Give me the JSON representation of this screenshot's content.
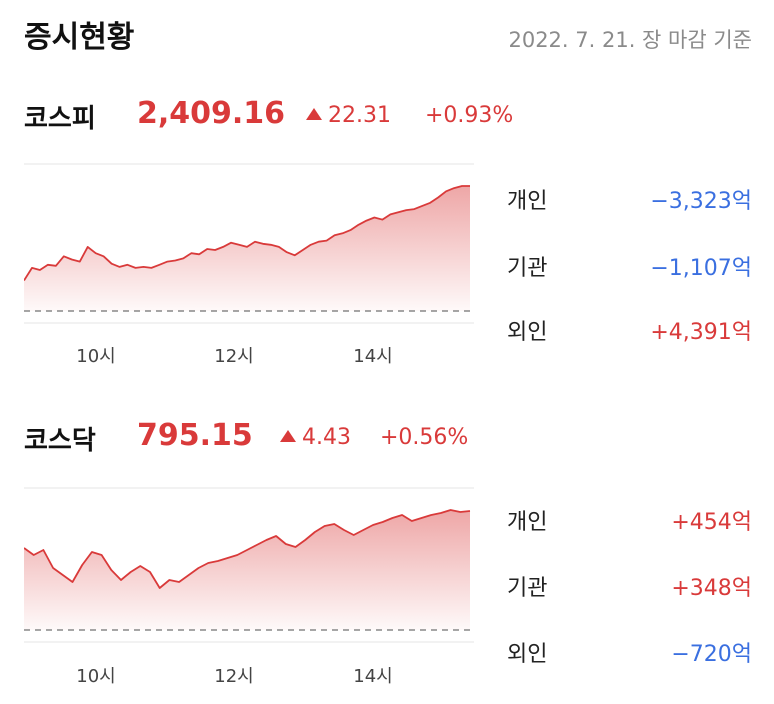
{
  "header": {
    "title": "증시현황",
    "date_note": "2022. 7. 21. 장 마감 기준"
  },
  "colors": {
    "up": "#d93a3a",
    "down": "#3a6fe0"
  },
  "markets": [
    {
      "name": "코스피",
      "value": "2,409.16",
      "change": "22.31",
      "change_pct": "+0.93%",
      "direction_icon": "up-triangle-icon",
      "x_ticks": [
        "10시",
        "12시",
        "14시"
      ],
      "investors": [
        {
          "label": "개인",
          "value": "−3,323억",
          "sign": "neg"
        },
        {
          "label": "기관",
          "value": "−1,107억",
          "sign": "neg"
        },
        {
          "label": "외인",
          "value": "+4,391억",
          "sign": "pos"
        }
      ],
      "chart_data": {
        "type": "area",
        "x_ticks": [
          "10시",
          "12시",
          "14시"
        ],
        "series_trend": [
          0.1,
          0.22,
          0.2,
          0.25,
          0.24,
          0.33,
          0.3,
          0.28,
          0.42,
          0.36,
          0.33,
          0.26,
          0.23,
          0.25,
          0.22,
          0.23,
          0.22,
          0.25,
          0.28,
          0.29,
          0.31,
          0.36,
          0.35,
          0.4,
          0.39,
          0.42,
          0.46,
          0.44,
          0.42,
          0.47,
          0.45,
          0.44,
          0.42,
          0.37,
          0.34,
          0.39,
          0.44,
          0.47,
          0.48,
          0.53,
          0.55,
          0.58,
          0.63,
          0.67,
          0.7,
          0.68,
          0.73,
          0.75,
          0.77,
          0.78,
          0.81,
          0.84,
          0.89,
          0.95,
          0.98,
          1.0,
          1.0
        ]
      }
    },
    {
      "name": "코스닥",
      "value": "795.15",
      "change": "4.43",
      "change_pct": "+0.56%",
      "direction_icon": "up-triangle-icon",
      "x_ticks": [
        "10시",
        "12시",
        "14시"
      ],
      "investors": [
        {
          "label": "개인",
          "value": "+454억",
          "sign": "pos"
        },
        {
          "label": "기관",
          "value": "+348억",
          "sign": "pos"
        },
        {
          "label": "외인",
          "value": "−720억",
          "sign": "neg"
        }
      ],
      "chart_data": {
        "type": "area",
        "x_ticks": [
          "10시",
          "12시",
          "14시"
        ],
        "series_trend": [
          0.62,
          0.55,
          0.6,
          0.42,
          0.35,
          0.28,
          0.45,
          0.58,
          0.55,
          0.4,
          0.3,
          0.38,
          0.44,
          0.38,
          0.22,
          0.3,
          0.28,
          0.35,
          0.42,
          0.47,
          0.49,
          0.52,
          0.55,
          0.6,
          0.65,
          0.7,
          0.74,
          0.66,
          0.63,
          0.7,
          0.78,
          0.84,
          0.86,
          0.8,
          0.75,
          0.8,
          0.85,
          0.88,
          0.92,
          0.95,
          0.89,
          0.92,
          0.95,
          0.97,
          1.0,
          0.98,
          0.99
        ]
      }
    }
  ]
}
